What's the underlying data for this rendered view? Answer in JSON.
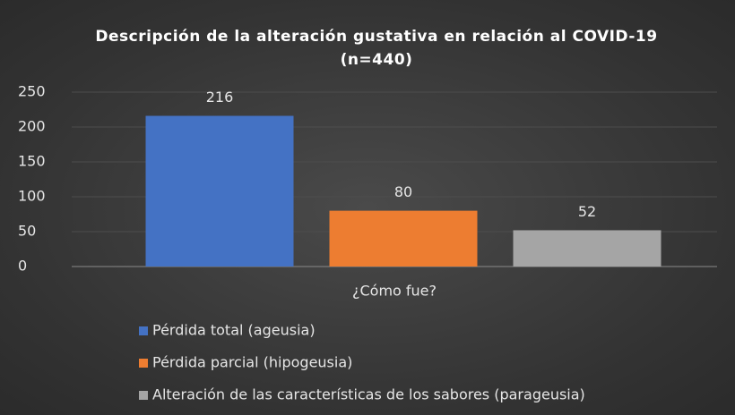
{
  "chart_data": {
    "type": "bar",
    "title": "Descripción de la alteración gustativa en relación al COVID-19 (n=440)",
    "categories": [
      "¿Cómo fue?"
    ],
    "series": [
      {
        "name": "Pérdida total (ageusia)",
        "color": "#4472c4",
        "values": [
          216
        ]
      },
      {
        "name": "Pérdida parcial (hipogeusia)",
        "color": "#ed7d31",
        "values": [
          80
        ]
      },
      {
        "name": "Alteración de las características de los sabores (parageusia)",
        "color": "#a5a5a5",
        "values": [
          52
        ]
      }
    ],
    "ylim": [
      0,
      250
    ],
    "yticks": [
      0,
      50,
      100,
      150,
      200,
      250
    ],
    "grid": true,
    "legend": "bottom"
  }
}
